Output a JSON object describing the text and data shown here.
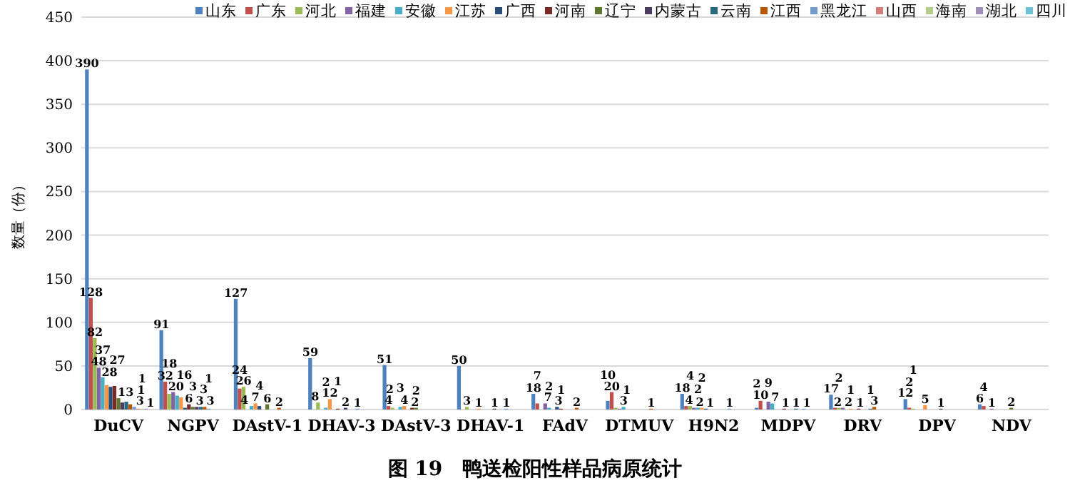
{
  "chart_data": {
    "type": "bar",
    "title": "图 19　鸭送检阳性样品病原统计",
    "ylabel": "数量（份）",
    "categories": [
      "DuCV",
      "NGPV",
      "DAstV-1",
      "DHAV-3",
      "DAstV-3",
      "DHAV-1",
      "FAdV",
      "DTMUV",
      "H9N2",
      "MDPV",
      "DRV",
      "DPV",
      "NDV"
    ],
    "ylim": [
      0,
      450
    ],
    "yticks": [
      0,
      50,
      100,
      150,
      200,
      250,
      300,
      350,
      400,
      450
    ],
    "grid": "y",
    "legend": "top",
    "series": [
      {
        "name": "山东",
        "color": "#4f81bd",
        "values": [
          390,
          91,
          127,
          59,
          51,
          50,
          18,
          10,
          18,
          2,
          17,
          12,
          6
        ],
        "value_labels": [
          "390",
          "91",
          "127",
          "59",
          "51",
          "50",
          "18",
          "10",
          "18",
          "2",
          "17",
          "12",
          "6"
        ]
      },
      {
        "name": "广东",
        "color": "#c0504d",
        "values": [
          128,
          32,
          24,
          null,
          4,
          null,
          7,
          20,
          4,
          10,
          2,
          2,
          4
        ],
        "value_labels": [
          "128",
          "32",
          "24",
          null,
          "4",
          null,
          "7",
          "20",
          "4",
          "10",
          "2",
          "2",
          "4"
        ]
      },
      {
        "name": "河北",
        "color": "#9bbb59",
        "values": [
          82,
          18,
          26,
          8,
          2,
          3,
          null,
          2,
          4,
          null,
          2,
          1,
          null
        ],
        "value_labels": [
          "82",
          "18",
          "26",
          "8",
          "2",
          "3",
          null,
          null,
          "4",
          null,
          "2",
          "1",
          null
        ]
      },
      {
        "name": "福建",
        "color": "#8064a2",
        "values": [
          48,
          20,
          null,
          null,
          null,
          null,
          7,
          1,
          2,
          9,
          2,
          null,
          1
        ],
        "value_labels": [
          "48",
          "20",
          null,
          null,
          null,
          null,
          "7",
          "1",
          "2",
          "9",
          "2",
          null,
          "1"
        ]
      },
      {
        "name": "安徽",
        "color": "#4bacc6",
        "values": [
          37,
          16,
          4,
          2,
          3,
          null,
          2,
          3,
          2,
          7,
          null,
          null,
          null
        ],
        "value_labels": [
          "37",
          "16",
          "4",
          "2",
          "3",
          null,
          "2",
          "3",
          "2",
          "7",
          null,
          null,
          null
        ]
      },
      {
        "name": "江苏",
        "color": "#f79646",
        "values": [
          28,
          14,
          7,
          12,
          4,
          1,
          null,
          null,
          2,
          null,
          1,
          5,
          null
        ],
        "value_labels": [
          "28",
          null,
          "7",
          "12",
          "4",
          "1",
          null,
          null,
          "2",
          null,
          "1",
          "5",
          null
        ]
      },
      {
        "name": "广西",
        "color": "#2c4d75",
        "values": [
          26,
          2,
          4,
          null,
          null,
          null,
          3,
          null,
          1,
          null,
          null,
          null,
          null
        ],
        "value_labels": [
          null,
          null,
          "4",
          null,
          null,
          null,
          "3",
          null,
          "1",
          null,
          null,
          null,
          null
        ]
      },
      {
        "name": "河南",
        "color": "#772c2a",
        "values": [
          27,
          6,
          null,
          1,
          2,
          null,
          1,
          null,
          null,
          1,
          1,
          null,
          null
        ],
        "value_labels": [
          "27",
          "6",
          null,
          "1",
          "2",
          null,
          "1",
          null,
          null,
          "1",
          "1",
          null,
          null
        ]
      },
      {
        "name": "辽宁",
        "color": "#5f7530",
        "values": [
          13,
          3,
          6,
          null,
          2,
          null,
          null,
          null,
          null,
          null,
          null,
          null,
          2
        ],
        "value_labels": [
          "13",
          "3",
          "6",
          null,
          "2",
          null,
          null,
          null,
          null,
          null,
          null,
          null,
          "2"
        ]
      },
      {
        "name": "内蒙古",
        "color": "#4d3b62",
        "values": [
          8,
          3,
          null,
          2,
          null,
          1,
          null,
          null,
          null,
          null,
          null,
          1,
          null
        ],
        "value_labels": [
          null,
          "3",
          null,
          "2",
          null,
          "1",
          null,
          null,
          null,
          null,
          null,
          "1",
          null
        ]
      },
      {
        "name": "云南",
        "color": "#276a7c",
        "values": [
          9,
          3,
          null,
          null,
          null,
          null,
          null,
          null,
          null,
          1,
          1,
          null,
          null
        ],
        "value_labels": [
          null,
          "3",
          null,
          null,
          null,
          null,
          null,
          null,
          null,
          "1",
          "1",
          null,
          null
        ]
      },
      {
        "name": "江西",
        "color": "#b65708",
        "values": [
          6,
          3,
          2,
          null,
          null,
          null,
          2,
          1,
          null,
          null,
          3,
          null,
          null
        ],
        "value_labels": [
          null,
          "3",
          "2",
          null,
          null,
          null,
          "2",
          "1",
          null,
          null,
          "3",
          null,
          null
        ]
      },
      {
        "name": "黑龙江",
        "color": "#729aca",
        "values": [
          3,
          1,
          null,
          1,
          null,
          1,
          null,
          null,
          1,
          1,
          null,
          null,
          null
        ],
        "value_labels": [
          "3",
          "1",
          null,
          "1",
          null,
          "1",
          null,
          null,
          "1",
          "1",
          null,
          null,
          null
        ]
      },
      {
        "name": "山西",
        "color": "#d37d7b",
        "values": [
          1,
          null,
          null,
          null,
          null,
          null,
          null,
          null,
          null,
          null,
          null,
          null,
          null
        ],
        "value_labels": [
          "1",
          null,
          null,
          null,
          null,
          null,
          null,
          null,
          null,
          null,
          null,
          null,
          null
        ]
      },
      {
        "name": "海南",
        "color": "#b5cb8a",
        "values": [
          1,
          null,
          null,
          null,
          null,
          null,
          null,
          null,
          null,
          null,
          null,
          null,
          null
        ],
        "value_labels": [
          "1",
          null,
          null,
          null,
          null,
          null,
          null,
          null,
          null,
          null,
          null,
          null,
          null
        ]
      },
      {
        "name": "湖北",
        "color": "#a18fba",
        "values": [
          1,
          null,
          null,
          null,
          null,
          null,
          null,
          null,
          null,
          null,
          null,
          null,
          null
        ],
        "value_labels": [
          "1",
          null,
          null,
          null,
          null,
          null,
          null,
          null,
          null,
          null,
          null,
          null,
          null
        ]
      },
      {
        "name": "四川",
        "color": "#6ec0d5",
        "values": [
          null,
          null,
          null,
          null,
          null,
          null,
          null,
          null,
          null,
          null,
          null,
          null,
          null
        ]
      }
    ]
  }
}
